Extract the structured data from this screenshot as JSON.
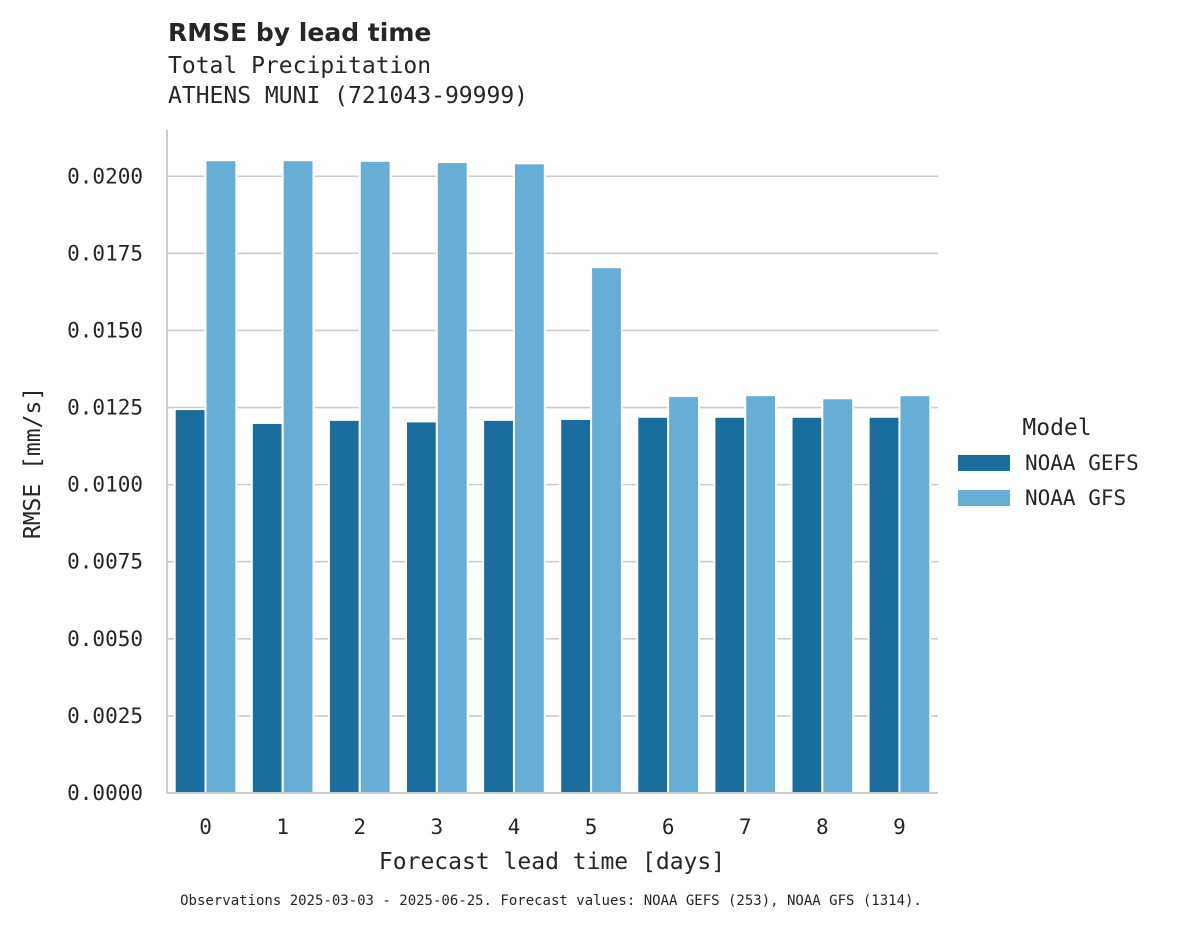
{
  "chart_data": {
    "type": "bar",
    "title": "RMSE by lead time",
    "subtitle_lines": [
      "Total Precipitation",
      "ATHENS MUNI (721043-99999)"
    ],
    "xlabel": "Forecast lead time [days]",
    "ylabel": "RMSE [mm/s]",
    "categories": [
      "0",
      "1",
      "2",
      "3",
      "4",
      "5",
      "6",
      "7",
      "8",
      "9"
    ],
    "series": [
      {
        "name": "NOAA GEFS",
        "color": "#1a6e9e",
        "values": [
          0.01245,
          0.012,
          0.0121,
          0.01205,
          0.0121,
          0.01213,
          0.0122,
          0.0122,
          0.0122,
          0.0122
        ]
      },
      {
        "name": "NOAA GFS",
        "color": "#67aed6",
        "values": [
          0.02052,
          0.02052,
          0.0205,
          0.02046,
          0.02042,
          0.01705,
          0.01287,
          0.0129,
          0.0128,
          0.0129
        ]
      }
    ],
    "ylim": [
      0,
      0.0215
    ],
    "yticks": [
      "0.0000",
      "0.0025",
      "0.0050",
      "0.0075",
      "0.0100",
      "0.0125",
      "0.0150",
      "0.0175",
      "0.0200"
    ],
    "grid": "horizontal",
    "legend": {
      "title": "Model",
      "placement": "right"
    },
    "footnote": "Observations 2025-03-03 - 2025-06-25. Forecast values: NOAA GEFS (253), NOAA GFS (1314)."
  }
}
